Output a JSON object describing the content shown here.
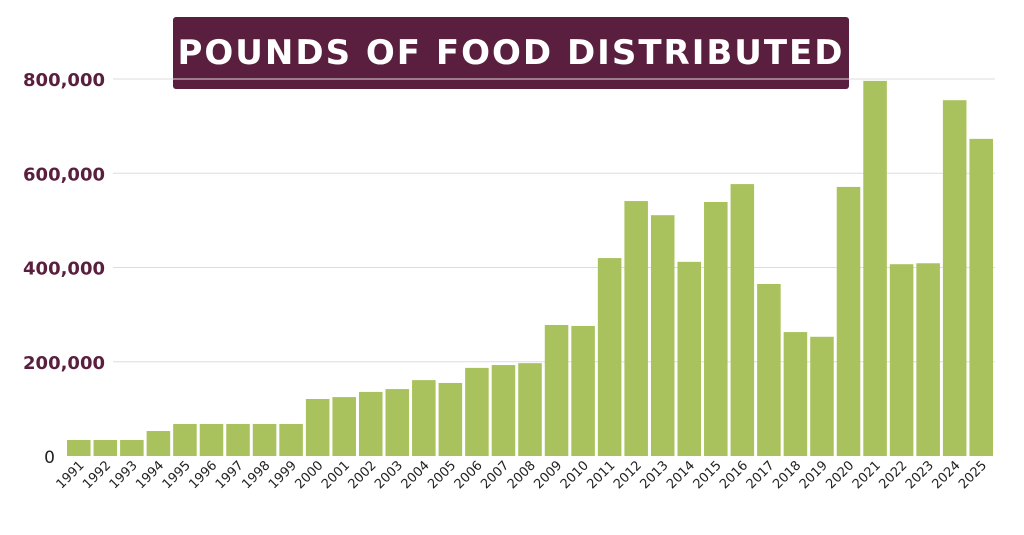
{
  "chart_data": {
    "type": "bar",
    "title": "POUNDS OF FOOD DISTRIBUTED",
    "xlabel": "",
    "ylabel": "",
    "ylim": [
      0,
      800000
    ],
    "yticks": [
      0,
      200000,
      400000,
      600000,
      800000
    ],
    "ytick_labels": [
      "0",
      "200,000",
      "400,000",
      "600,000",
      "800,000"
    ],
    "grid": true,
    "legend": "none",
    "colors": {
      "bar": "#a9c25d",
      "title_bg": "#5a1e3e",
      "ytick_text": "#5a1e3e",
      "grid": "#dddddd"
    },
    "categories": [
      "1991",
      "1992",
      "1993",
      "1994",
      "1995",
      "1996",
      "1997",
      "1998",
      "1999",
      "2000",
      "2001",
      "2002",
      "2003",
      "2004",
      "2005",
      "2006",
      "2007",
      "2008",
      "2009",
      "2010",
      "2011",
      "2012",
      "2013",
      "2014",
      "2015",
      "2016",
      "2017",
      "2018",
      "2019",
      "2020",
      "2021",
      "2022",
      "2023",
      "2024",
      "2025"
    ],
    "values": [
      34000,
      34000,
      34000,
      53000,
      68000,
      68000,
      68000,
      68000,
      68000,
      121000,
      125000,
      136000,
      142000,
      161000,
      155000,
      187000,
      193000,
      197000,
      278000,
      276000,
      420000,
      541000,
      511000,
      412000,
      539000,
      577000,
      365000,
      263000,
      253000,
      571000,
      796000,
      407000,
      409000,
      755000,
      673000
    ]
  }
}
